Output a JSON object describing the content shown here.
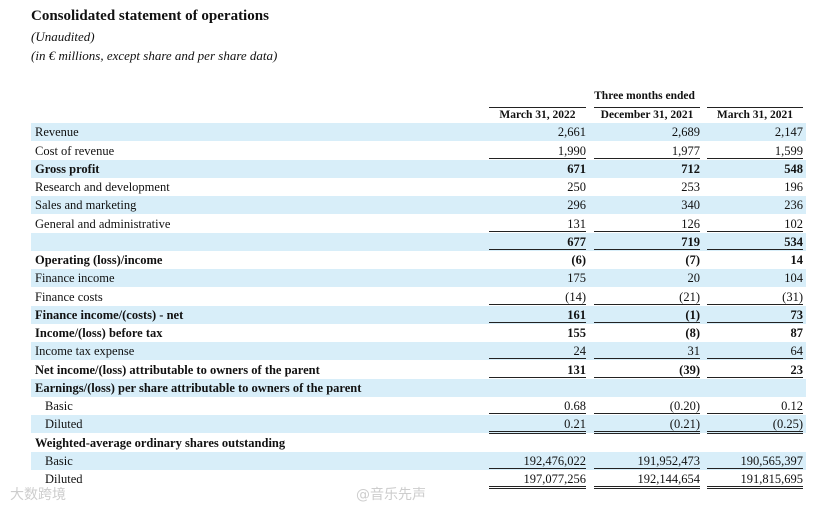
{
  "header": {
    "title": "Consolidated statement of operations",
    "subtitle": "(Unaudited)",
    "note": "(in € millions, except share and per share data)"
  },
  "columns": {
    "period_label": "Three months ended",
    "dates": [
      "March 31, 2022",
      "December 31, 2021",
      "March 31, 2021"
    ]
  },
  "rows": [
    {
      "label": "Revenue",
      "values": [
        "2,661",
        "2,689",
        "2,147"
      ]
    },
    {
      "label": "Cost of revenue",
      "values": [
        "1,990",
        "1,977",
        "1,599"
      ]
    },
    {
      "label": "Gross profit",
      "values": [
        "671",
        "712",
        "548"
      ]
    },
    {
      "label": "Research and development",
      "values": [
        "250",
        "253",
        "196"
      ]
    },
    {
      "label": "Sales and marketing",
      "values": [
        "296",
        "340",
        "236"
      ]
    },
    {
      "label": "General and administrative",
      "values": [
        "131",
        "126",
        "102"
      ]
    },
    {
      "label": "",
      "values": [
        "677",
        "719",
        "534"
      ]
    },
    {
      "label": "Operating (loss)/income",
      "values": [
        "(6)",
        "(7)",
        "14"
      ]
    },
    {
      "label": "Finance income",
      "values": [
        "175",
        "20",
        "104"
      ]
    },
    {
      "label": "Finance costs",
      "values": [
        "(14)",
        "(21)",
        "(31)"
      ]
    },
    {
      "label": "Finance income/(costs) - net",
      "values": [
        "161",
        "(1)",
        "73"
      ]
    },
    {
      "label": "Income/(loss) before tax",
      "values": [
        "155",
        "(8)",
        "87"
      ]
    },
    {
      "label": "Income tax expense",
      "values": [
        "24",
        "31",
        "64"
      ]
    },
    {
      "label": "Net income/(loss) attributable to owners of the parent",
      "values": [
        "131",
        "(39)",
        "23"
      ]
    },
    {
      "label": "Earnings/(loss) per share attributable to owners of the parent",
      "values": [
        "",
        "",
        ""
      ]
    },
    {
      "label": "Basic",
      "values": [
        "0.68",
        "(0.20)",
        "0.12"
      ]
    },
    {
      "label": "Diluted",
      "values": [
        "0.21",
        "(0.21)",
        "(0.25)"
      ]
    },
    {
      "label": "Weighted-average ordinary shares outstanding",
      "values": [
        "",
        "",
        ""
      ]
    },
    {
      "label": "Basic",
      "values": [
        "192,476,022",
        "191,952,473",
        "190,565,397"
      ]
    },
    {
      "label": "Diluted",
      "values": [
        "197,077,256",
        "192,144,654",
        "191,815,695"
      ]
    }
  ],
  "watermarks": [
    "大数跨境",
    "@音乐先声"
  ]
}
